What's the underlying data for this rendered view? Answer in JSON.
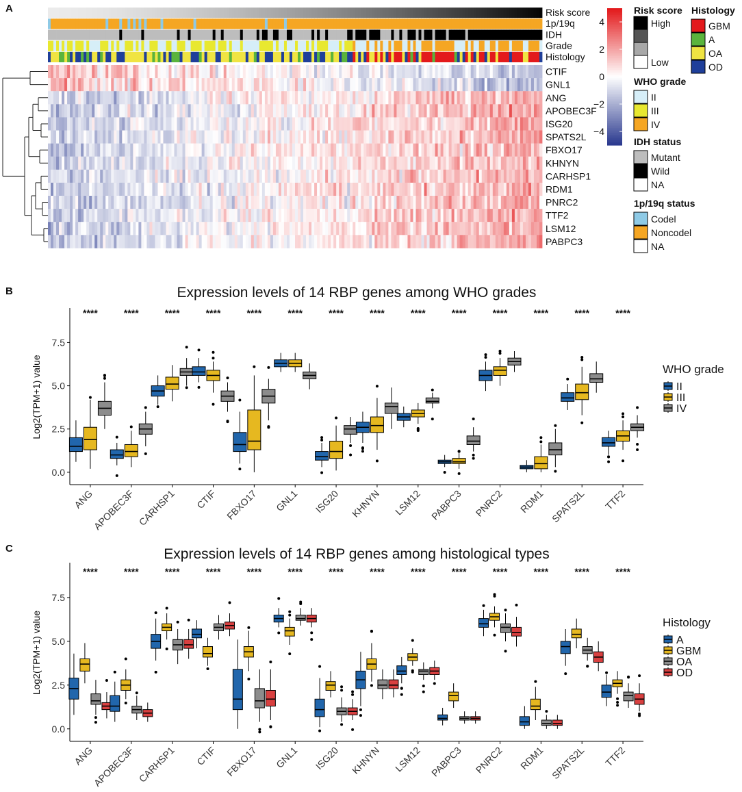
{
  "panels": {
    "a": "A",
    "b": "B",
    "c": "C"
  },
  "heatmap": {
    "annotation_labels": [
      "Risk score",
      "1p/19q",
      "IDH",
      "Grade",
      "Histology"
    ],
    "genes": [
      "CTIF",
      "GNL1",
      "ANG",
      "APOBEC3F",
      "ISG20",
      "SPATS2L",
      "FBXO17",
      "KHNYN",
      "CARHSP1",
      "RDM1",
      "PNRC2",
      "TTF2",
      "LSM12",
      "PABPC3"
    ],
    "colorbar": {
      "ticks": [
        "4",
        "2",
        "0",
        "−2",
        "−4"
      ],
      "range": [
        -5,
        5
      ]
    },
    "legends": {
      "risk": {
        "title": "Risk score",
        "items": [
          "High",
          "Low"
        ]
      },
      "histology": {
        "title": "Histology",
        "items": [
          "GBM",
          "A",
          "OA",
          "OD"
        ]
      },
      "who": {
        "title": "WHO grade",
        "items": [
          "II",
          "III",
          "IV"
        ]
      },
      "idh": {
        "title": "IDH status",
        "items": [
          "Mutant",
          "Wild",
          "NA"
        ]
      },
      "codel": {
        "title": "1p/19q status",
        "items": [
          "Codel",
          "Noncodel",
          "NA"
        ]
      }
    }
  },
  "colors": {
    "high": "#e31a1c",
    "low": "#2b3a8f",
    "mid": "#ffffff",
    "grade_II": "#2166ac",
    "grade_III": "#e6b820",
    "grade_IV": "#8c8c8c",
    "hist_A": "#2166ac",
    "hist_GBM": "#e6b820",
    "hist_OA": "#8c8c8c",
    "hist_OD": "#d94040",
    "anno_codel": "#8ecae6",
    "anno_noncodel": "#f5a623",
    "anno_idh_mut": "#bdbdbd",
    "anno_idh_wt": "#000000",
    "anno_II": "#d6eef8",
    "anno_III": "#e8e830",
    "anno_IV": "#f5a623",
    "anno_GBM": "#e31a1c",
    "anno_A": "#5ab43c",
    "anno_OA": "#f0e442",
    "anno_OD": "#1f3f9a"
  },
  "chart_data": [
    {
      "type": "boxplot",
      "title": "Expression levels of 14 RBP genes among WHO grades",
      "ylabel": "Log2(TPM+1) value",
      "ylim": [
        -0.4,
        9.1
      ],
      "yticks": [
        "0.0",
        "2.5",
        "5.0",
        "7.5"
      ],
      "categories": [
        "ANG",
        "APOBEC3F",
        "CARHSP1",
        "CTIF",
        "FBXO17",
        "GNL1",
        "ISG20",
        "KHNYN",
        "LSM12",
        "PABPC3",
        "PNRC2",
        "RDM1",
        "SPATS2L",
        "TTF2"
      ],
      "significance": [
        "****",
        "****",
        "****",
        "****",
        "****",
        "****",
        "****",
        "****",
        "****",
        "****",
        "****",
        "****",
        "****",
        "****"
      ],
      "legend_title": "WHO grade",
      "series": [
        {
          "name": "II",
          "boxes": [
            [
              1.5,
              1.2,
              2.0,
              0.6,
              3.0
            ],
            [
              1.0,
              0.8,
              1.3,
              0.4,
              1.7
            ],
            [
              4.7,
              4.4,
              5.0,
              3.9,
              5.6
            ],
            [
              5.8,
              5.6,
              6.1,
              5.2,
              6.6
            ],
            [
              1.6,
              1.2,
              2.3,
              0.5,
              3.5
            ],
            [
              6.3,
              6.1,
              6.5,
              5.8,
              6.9
            ],
            [
              0.9,
              0.7,
              1.2,
              0.3,
              1.7
            ],
            [
              2.6,
              2.3,
              2.9,
              1.7,
              3.5
            ],
            [
              3.2,
              3.0,
              3.4,
              2.6,
              3.8
            ],
            [
              0.6,
              0.5,
              0.7,
              0.3,
              1.0
            ],
            [
              5.6,
              5.3,
              5.9,
              4.7,
              6.4
            ],
            [
              0.3,
              0.2,
              0.4,
              0.0,
              0.7
            ],
            [
              4.3,
              4.1,
              4.6,
              3.6,
              5.1
            ],
            [
              1.7,
              1.5,
              2.0,
              1.0,
              2.4
            ]
          ]
        },
        {
          "name": "III",
          "boxes": [
            [
              1.9,
              1.3,
              2.6,
              0.2,
              4.2
            ],
            [
              1.2,
              0.9,
              1.6,
              0.3,
              2.4
            ],
            [
              5.1,
              4.8,
              5.5,
              4.1,
              6.2
            ],
            [
              5.6,
              5.3,
              5.9,
              4.6,
              6.4
            ],
            [
              1.8,
              1.3,
              3.6,
              0.0,
              5.6
            ],
            [
              6.3,
              6.1,
              6.5,
              5.8,
              6.9
            ],
            [
              1.2,
              0.8,
              1.8,
              0.1,
              2.7
            ],
            [
              2.7,
              2.3,
              3.2,
              1.3,
              4.3
            ],
            [
              3.4,
              3.2,
              3.6,
              2.8,
              4.0
            ],
            [
              0.6,
              0.5,
              0.8,
              0.2,
              1.1
            ],
            [
              5.9,
              5.6,
              6.1,
              5.0,
              6.6
            ],
            [
              0.5,
              0.2,
              0.9,
              0.0,
              1.6
            ],
            [
              4.6,
              4.2,
              5.1,
              3.3,
              6.1
            ],
            [
              2.1,
              1.8,
              2.4,
              1.3,
              3.0
            ]
          ]
        },
        {
          "name": "IV",
          "boxes": [
            [
              3.7,
              3.3,
              4.1,
              2.5,
              5.2
            ],
            [
              2.5,
              2.2,
              2.8,
              1.5,
              3.5
            ],
            [
              5.8,
              5.6,
              6.0,
              5.0,
              6.6
            ],
            [
              4.4,
              4.1,
              4.7,
              3.5,
              5.2
            ],
            [
              4.4,
              4.0,
              4.8,
              3.0,
              5.4
            ],
            [
              5.6,
              5.4,
              5.8,
              4.8,
              6.3
            ],
            [
              2.5,
              2.2,
              2.7,
              1.7,
              3.2
            ],
            [
              3.8,
              3.4,
              4.0,
              2.5,
              4.9
            ],
            [
              4.1,
              4.0,
              4.3,
              3.7,
              4.6
            ],
            [
              1.8,
              1.6,
              2.1,
              1.2,
              2.6
            ],
            [
              6.4,
              6.2,
              6.6,
              5.8,
              7.0
            ],
            [
              1.3,
              1.0,
              1.7,
              0.3,
              2.5
            ],
            [
              5.4,
              5.2,
              5.7,
              4.6,
              6.4
            ],
            [
              2.6,
              2.4,
              2.8,
              2.0,
              3.3
            ]
          ]
        }
      ]
    },
    {
      "type": "boxplot",
      "title": "Expression levels of 14 RBP genes among histological types",
      "ylabel": "Log2(TPM+1) value",
      "ylim": [
        -0.4,
        9.1
      ],
      "yticks": [
        "0.0",
        "2.5",
        "5.0",
        "7.5"
      ],
      "categories": [
        "ANG",
        "APOBEC3F",
        "CARHSP1",
        "CTIF",
        "FBXO17",
        "GNL1",
        "ISG20",
        "KHNYN",
        "LSM12",
        "PABPC3",
        "PNRC2",
        "RDM1",
        "SPATS2L",
        "TTF2"
      ],
      "significance": [
        "****",
        "****",
        "****",
        "****",
        "****",
        "****",
        "****",
        "****",
        "****",
        "****",
        "****",
        "****",
        "****",
        "****"
      ],
      "legend_title": "Histology",
      "series": [
        {
          "name": "A",
          "boxes": [
            [
              2.3,
              1.7,
              2.9,
              0.8,
              4.3
            ],
            [
              1.3,
              1.0,
              1.9,
              0.4,
              2.7
            ],
            [
              5.0,
              4.6,
              5.4,
              3.9,
              6.3
            ],
            [
              5.4,
              5.2,
              5.7,
              4.6,
              6.2
            ],
            [
              1.7,
              1.1,
              3.4,
              0.0,
              5.1
            ],
            [
              6.3,
              6.1,
              6.5,
              5.8,
              6.9
            ],
            [
              1.1,
              0.7,
              1.7,
              0.1,
              2.9
            ],
            [
              2.8,
              2.3,
              3.3,
              1.3,
              4.4
            ],
            [
              3.3,
              3.1,
              3.6,
              2.6,
              4.1
            ],
            [
              0.6,
              0.5,
              0.8,
              0.2,
              1.2
            ],
            [
              6.0,
              5.8,
              6.3,
              5.3,
              6.8
            ],
            [
              0.4,
              0.2,
              0.7,
              0.0,
              1.3
            ],
            [
              4.7,
              4.3,
              5.0,
              3.6,
              5.7
            ],
            [
              2.1,
              1.8,
              2.5,
              1.3,
              3.1
            ]
          ]
        },
        {
          "name": "GBM",
          "boxes": [
            [
              3.7,
              3.3,
              4.0,
              2.6,
              4.9
            ],
            [
              2.5,
              2.2,
              2.8,
              1.7,
              3.4
            ],
            [
              5.8,
              5.6,
              6.0,
              5.1,
              6.6
            ],
            [
              4.3,
              4.1,
              4.7,
              3.6,
              5.2
            ],
            [
              4.4,
              4.1,
              4.7,
              3.3,
              5.6
            ],
            [
              5.6,
              5.3,
              5.8,
              4.8,
              6.3
            ],
            [
              2.5,
              2.2,
              2.7,
              1.8,
              3.3
            ],
            [
              3.7,
              3.4,
              4.0,
              2.7,
              4.9
            ],
            [
              4.1,
              3.9,
              4.3,
              3.6,
              4.6
            ],
            [
              1.9,
              1.6,
              2.1,
              1.2,
              2.6
            ],
            [
              6.4,
              6.2,
              6.6,
              5.8,
              7.0
            ],
            [
              1.3,
              1.1,
              1.7,
              0.5,
              2.4
            ],
            [
              5.4,
              5.2,
              5.7,
              4.6,
              6.3
            ],
            [
              2.6,
              2.4,
              2.8,
              2.0,
              3.3
            ]
          ]
        },
        {
          "name": "OA",
          "boxes": [
            [
              1.6,
              1.4,
              2.0,
              0.8,
              2.8
            ],
            [
              1.1,
              0.9,
              1.3,
              0.5,
              1.9
            ],
            [
              4.8,
              4.5,
              5.1,
              3.7,
              5.7
            ],
            [
              5.8,
              5.6,
              6.0,
              5.1,
              6.5
            ],
            [
              1.6,
              1.2,
              2.3,
              0.4,
              3.4
            ],
            [
              6.3,
              6.2,
              6.5,
              5.9,
              6.9
            ],
            [
              1.0,
              0.8,
              1.2,
              0.4,
              1.8
            ],
            [
              2.5,
              2.3,
              2.8,
              1.7,
              3.4
            ],
            [
              3.3,
              3.1,
              3.4,
              2.8,
              3.8
            ],
            [
              0.6,
              0.5,
              0.7,
              0.3,
              1.0
            ],
            [
              5.8,
              5.5,
              6.0,
              5.0,
              6.6
            ],
            [
              0.3,
              0.2,
              0.5,
              0.0,
              0.8
            ],
            [
              4.5,
              4.3,
              4.7,
              3.9,
              5.2
            ],
            [
              1.9,
              1.6,
              2.1,
              1.2,
              2.6
            ]
          ]
        },
        {
          "name": "OD",
          "boxes": [
            [
              1.3,
              1.1,
              1.5,
              0.6,
              2.1
            ],
            [
              0.9,
              0.7,
              1.1,
              0.4,
              1.5
            ],
            [
              4.8,
              4.6,
              5.1,
              4.0,
              5.7
            ],
            [
              5.9,
              5.7,
              6.1,
              5.3,
              6.6
            ],
            [
              1.7,
              1.3,
              2.2,
              0.5,
              3.4
            ],
            [
              6.3,
              6.1,
              6.5,
              5.8,
              6.9
            ],
            [
              1.0,
              0.8,
              1.2,
              0.5,
              1.7
            ],
            [
              2.5,
              2.3,
              2.8,
              1.8,
              3.4
            ],
            [
              3.3,
              3.1,
              3.5,
              2.8,
              3.9
            ],
            [
              0.6,
              0.5,
              0.7,
              0.3,
              1.0
            ],
            [
              5.5,
              5.3,
              5.8,
              4.7,
              6.4
            ],
            [
              0.3,
              0.2,
              0.5,
              0.0,
              0.8
            ],
            [
              4.1,
              3.8,
              4.4,
              3.3,
              5.0
            ],
            [
              1.7,
              1.4,
              2.0,
              1.0,
              2.6
            ]
          ]
        }
      ]
    }
  ]
}
